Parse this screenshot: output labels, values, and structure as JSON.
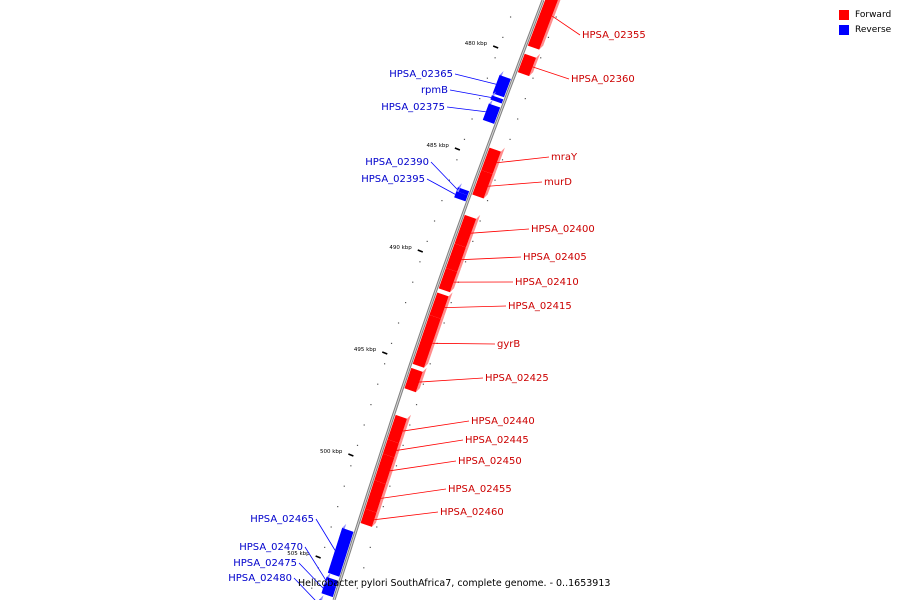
{
  "legend": [
    {
      "label": "Forward",
      "color": "#ff0000"
    },
    {
      "label": "Reverse",
      "color": "#0000ff"
    }
  ],
  "caption": "Helicobacter pylori SouthAfrica7, complete genome. - 0..1653913",
  "colors": {
    "forward": "#ff0000",
    "reverse": "#0000ff",
    "backbone": "#808080"
  },
  "ticks": [
    {
      "kbp": 480,
      "label": "480 kbp"
    },
    {
      "kbp": 485,
      "label": "485 kbp"
    },
    {
      "kbp": 490,
      "label": "490 kbp"
    },
    {
      "kbp": 495,
      "label": "495 kbp"
    },
    {
      "kbp": 500,
      "label": "500 kbp"
    },
    {
      "kbp": 505,
      "label": "505 kbp"
    }
  ],
  "genes": [
    {
      "name": "HPSA_02355",
      "strand": "forward",
      "start_kbp": 476.6,
      "end_kbp": 479.9
    },
    {
      "name": "HPSA_02360",
      "strand": "forward",
      "start_kbp": 480.3,
      "end_kbp": 481.2
    },
    {
      "name": "HPSA_02365",
      "strand": "reverse",
      "start_kbp": 481.6,
      "end_kbp": 482.5
    },
    {
      "name": "rpmB",
      "strand": "reverse",
      "start_kbp": 482.6,
      "end_kbp": 482.8
    },
    {
      "name": "HPSA_02375",
      "strand": "reverse",
      "start_kbp": 483.0,
      "end_kbp": 483.8
    },
    {
      "name": "mraY",
      "strand": "forward",
      "start_kbp": 484.9,
      "end_kbp": 486.0
    },
    {
      "name": "murD",
      "strand": "forward",
      "start_kbp": 486.0,
      "end_kbp": 487.2
    },
    {
      "name": "HPSA_02390",
      "strand": "reverse",
      "start_kbp": 487.1,
      "end_kbp": 487.3
    },
    {
      "name": "HPSA_02395",
      "strand": "reverse",
      "start_kbp": 487.3,
      "end_kbp": 487.6
    },
    {
      "name": "HPSA_02400",
      "strand": "forward",
      "start_kbp": 488.2,
      "end_kbp": 489.6
    },
    {
      "name": "HPSA_02405",
      "strand": "forward",
      "start_kbp": 489.6,
      "end_kbp": 490.8
    },
    {
      "name": "HPSA_02410",
      "strand": "forward",
      "start_kbp": 490.8,
      "end_kbp": 491.8
    },
    {
      "name": "HPSA_02415",
      "strand": "forward",
      "start_kbp": 492.0,
      "end_kbp": 493.1
    },
    {
      "name": "gyrB",
      "strand": "forward",
      "start_kbp": 493.1,
      "end_kbp": 495.5
    },
    {
      "name": "HPSA_02425",
      "strand": "forward",
      "start_kbp": 495.7,
      "end_kbp": 496.7
    },
    {
      "name": "HPSA_02440",
      "strand": "forward",
      "start_kbp": 498.0,
      "end_kbp": 499.2
    },
    {
      "name": "HPSA_02445",
      "strand": "forward",
      "start_kbp": 499.2,
      "end_kbp": 499.9
    },
    {
      "name": "HPSA_02450",
      "strand": "forward",
      "start_kbp": 499.9,
      "end_kbp": 501.2
    },
    {
      "name": "HPSA_02455",
      "strand": "forward",
      "start_kbp": 501.2,
      "end_kbp": 502.6
    },
    {
      "name": "HPSA_02460",
      "strand": "forward",
      "start_kbp": 502.6,
      "end_kbp": 503.3
    },
    {
      "name": "HPSA_02465",
      "strand": "reverse",
      "start_kbp": 503.8,
      "end_kbp": 506.0
    },
    {
      "name": "HPSA_02470",
      "strand": "reverse",
      "start_kbp": 506.2,
      "end_kbp": 506.5
    },
    {
      "name": "HPSA_02475",
      "strand": "reverse",
      "start_kbp": 506.5,
      "end_kbp": 507.0
    },
    {
      "name": "HPSA_02480",
      "strand": "reverse",
      "start_kbp": 507.3,
      "end_kbp": 507.7
    }
  ]
}
